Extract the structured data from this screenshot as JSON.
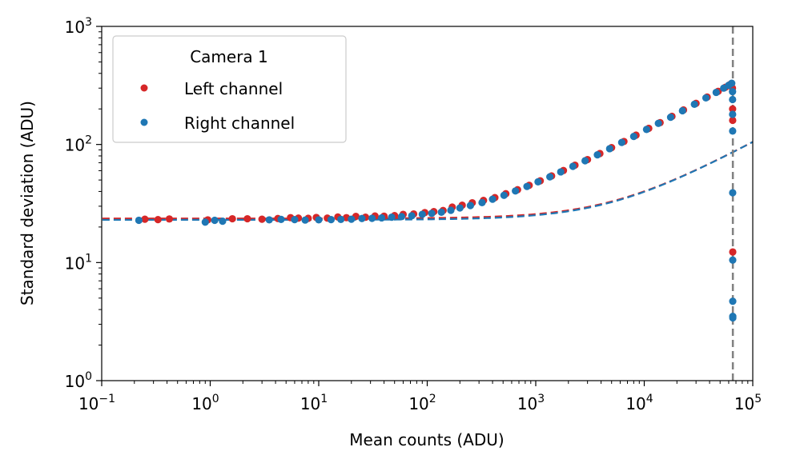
{
  "chart_data": {
    "type": "scatter",
    "title": "",
    "xlabel": "Mean counts (ADU)",
    "ylabel": "Standard deviation (ADU)",
    "xscale": "log",
    "yscale": "log",
    "xlim": [
      0.1,
      100000
    ],
    "ylim": [
      1,
      1000
    ],
    "x_ticks": [
      {
        "value": 0.1,
        "base": "10",
        "exp": "−1"
      },
      {
        "value": 1,
        "base": "10",
        "exp": "0"
      },
      {
        "value": 10,
        "base": "10",
        "exp": "1"
      },
      {
        "value": 100,
        "base": "10",
        "exp": "2"
      },
      {
        "value": 1000,
        "base": "10",
        "exp": "3"
      },
      {
        "value": 10000,
        "base": "10",
        "exp": "4"
      },
      {
        "value": 100000,
        "base": "10",
        "exp": "5"
      }
    ],
    "y_ticks": [
      {
        "value": 1,
        "base": "10",
        "exp": "0"
      },
      {
        "value": 10,
        "base": "10",
        "exp": "1"
      },
      {
        "value": 100,
        "base": "10",
        "exp": "2"
      },
      {
        "value": 1000,
        "base": "10",
        "exp": "3"
      }
    ],
    "grid": false,
    "legend": {
      "title": "Camera 1",
      "placement": "top-left",
      "entries": [
        "Left channel",
        "Right channel"
      ]
    },
    "saturation_line": {
      "x": 65535,
      "color": "#808080",
      "style": "dashed"
    },
    "series": [
      {
        "name": "Left channel",
        "color": "#d62728",
        "fit": {
          "read_noise": 23.6,
          "gain": 0.105,
          "color": "#d62728",
          "style": "dashed"
        },
        "points": [
          [
            0.25,
            23.3
          ],
          [
            0.33,
            23.1
          ],
          [
            0.42,
            23.4
          ],
          [
            0.95,
            23.0
          ],
          [
            1.6,
            23.5
          ],
          [
            2.2,
            23.5
          ],
          [
            3.0,
            23.3
          ],
          [
            4.2,
            23.6
          ],
          [
            5.5,
            24.0
          ],
          [
            6.5,
            23.8
          ],
          [
            8.0,
            23.7
          ],
          [
            9.5,
            24.1
          ],
          [
            12,
            23.8
          ],
          [
            15,
            24.3
          ],
          [
            18,
            24.0
          ],
          [
            22,
            24.6
          ],
          [
            27,
            24.2
          ],
          [
            33,
            24.8
          ],
          [
            40,
            24.7
          ],
          [
            50,
            25.0
          ],
          [
            60,
            25.6
          ],
          [
            75,
            25.8
          ],
          [
            95,
            26.5
          ],
          [
            115,
            27.0
          ],
          [
            140,
            27.6
          ],
          [
            170,
            29.5
          ],
          [
            210,
            30.6
          ],
          [
            260,
            32.1
          ],
          [
            330,
            33.6
          ],
          [
            420,
            35.5
          ],
          [
            530,
            38.3
          ],
          [
            680,
            41.4
          ],
          [
            870,
            45.1
          ],
          [
            1100,
            49.2
          ],
          [
            1400,
            54.2
          ],
          [
            1800,
            60.2
          ],
          [
            2300,
            66.8
          ],
          [
            3000,
            74.5
          ],
          [
            3900,
            83.8
          ],
          [
            5000,
            94.0
          ],
          [
            6500,
            106
          ],
          [
            8400,
            120
          ],
          [
            11000,
            137
          ],
          [
            14000,
            153
          ],
          [
            18000,
            173
          ],
          [
            23000,
            196
          ],
          [
            30000,
            223
          ],
          [
            38000,
            252
          ],
          [
            48000,
            282
          ],
          [
            56000,
            305
          ],
          [
            61000,
            320
          ],
          [
            63500,
            327
          ],
          [
            65000,
            300
          ],
          [
            65200,
            200
          ],
          [
            65300,
            160
          ],
          [
            65400,
            12.3
          ]
        ]
      },
      {
        "name": "Right channel",
        "color": "#1f77b4",
        "fit": {
          "read_noise": 23.0,
          "gain": 0.105,
          "color": "#1f77b4",
          "style": "dashed"
        },
        "points": [
          [
            0.22,
            22.8
          ],
          [
            0.9,
            22.0
          ],
          [
            1.1,
            22.8
          ],
          [
            1.3,
            22.4
          ],
          [
            3.5,
            23.0
          ],
          [
            4.5,
            23.2
          ],
          [
            6.0,
            23.1
          ],
          [
            7.5,
            22.9
          ],
          [
            10,
            23.0
          ],
          [
            13,
            23.1
          ],
          [
            16,
            23.2
          ],
          [
            20,
            23.3
          ],
          [
            25,
            23.6
          ],
          [
            31,
            23.7
          ],
          [
            38,
            23.9
          ],
          [
            47,
            24.2
          ],
          [
            58,
            24.5
          ],
          [
            72,
            24.9
          ],
          [
            90,
            25.6
          ],
          [
            110,
            26.1
          ],
          [
            135,
            26.7
          ],
          [
            165,
            27.7
          ],
          [
            200,
            29.0
          ],
          [
            250,
            30.4
          ],
          [
            320,
            32.2
          ],
          [
            400,
            34.4
          ],
          [
            510,
            37.1
          ],
          [
            650,
            40.4
          ],
          [
            830,
            44.1
          ],
          [
            1050,
            48.3
          ],
          [
            1350,
            53.2
          ],
          [
            1700,
            58.6
          ],
          [
            2200,
            65.3
          ],
          [
            2850,
            72.8
          ],
          [
            3700,
            81.7
          ],
          [
            4800,
            92.1
          ],
          [
            6200,
            104
          ],
          [
            8000,
            117
          ],
          [
            10500,
            134
          ],
          [
            13500,
            151
          ],
          [
            17500,
            170
          ],
          [
            22500,
            193
          ],
          [
            29000,
            219
          ],
          [
            37000,
            248
          ],
          [
            46000,
            276
          ],
          [
            54000,
            300
          ],
          [
            60000,
            317
          ],
          [
            64000,
            330
          ],
          [
            65100,
            280
          ],
          [
            65150,
            240
          ],
          [
            65200,
            180
          ],
          [
            65250,
            130
          ],
          [
            65300,
            39
          ],
          [
            65350,
            10.5
          ],
          [
            65400,
            4.7
          ],
          [
            65450,
            3.5
          ],
          [
            65480,
            3.4
          ]
        ]
      }
    ]
  }
}
